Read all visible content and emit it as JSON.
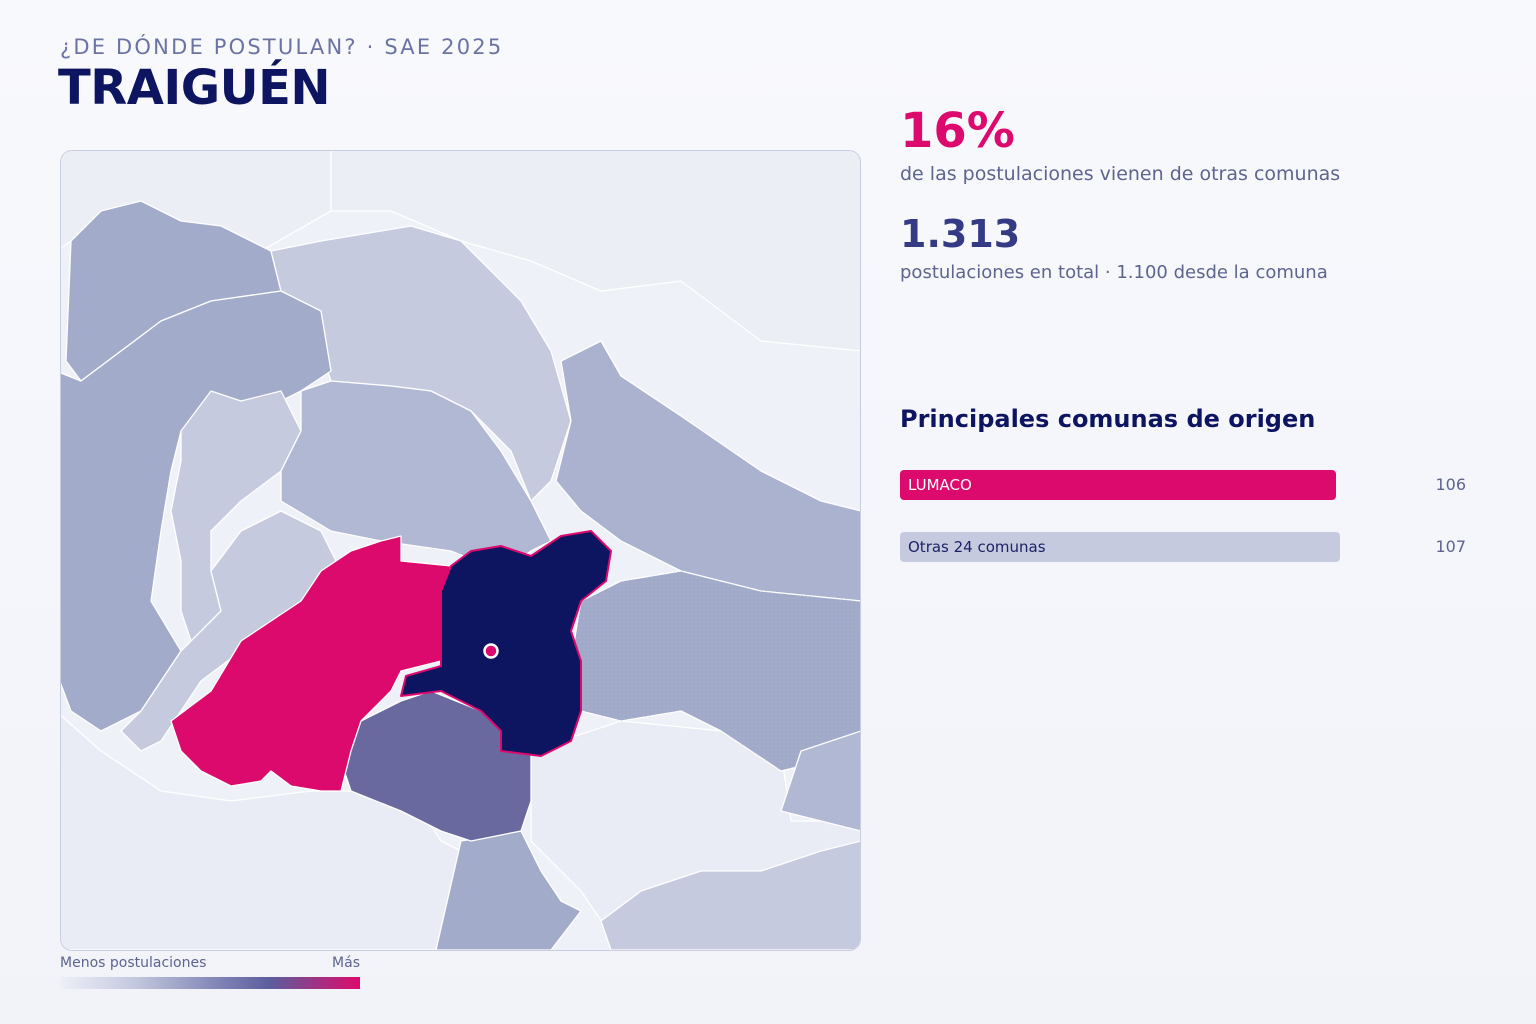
{
  "header": {
    "subtitle": "¿DE DÓNDE POSTULAN? · SAE 2025",
    "title": "TRAIGUÉN"
  },
  "stats": {
    "external_pct": "16%",
    "external_desc": "de las postulaciones vienen de otras comunas",
    "total": "1.313",
    "total_desc": "postulaciones en total · 1.100 desde la comuna"
  },
  "origins": {
    "title": "Principales comunas de origen",
    "items": [
      {
        "label": "LUMACO",
        "value": "106",
        "value_num": 106,
        "color": "#dd0a6d",
        "text_color": "#ffffff"
      },
      {
        "label": "Otras 24 comunas",
        "value": "107",
        "value_num": 107,
        "color": "#c6cadf",
        "text_color": "#1c2266"
      }
    ]
  },
  "legend": {
    "min_label": "Menos postulaciones",
    "max_label": "Más"
  },
  "colors": {
    "navy": "#0d1460",
    "magenta": "#dd0a6d",
    "map_background": "#eff1f8",
    "region_light": "#c6cadf",
    "region_mid": "#a3abca",
    "region_dark": "#6969a0"
  }
}
